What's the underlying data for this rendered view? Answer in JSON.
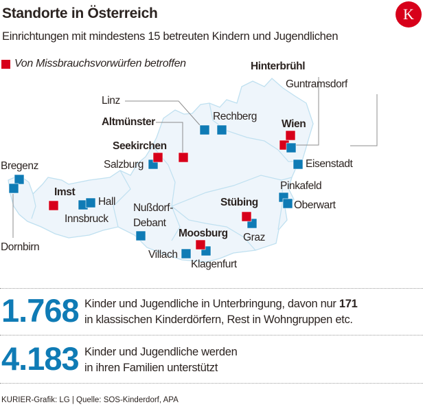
{
  "header": {
    "title": "Standorte in Österreich",
    "subtitle": "Einrichtungen mit mindestens 15 betreuten Kindern und Jugendlichen",
    "logo_letter": "K"
  },
  "legend": {
    "label": "Von Missbrauchsvorwürfen betroffen",
    "color": "#d7001a"
  },
  "colors": {
    "affected": "#d7001a",
    "standard": "#0f7bb5",
    "map_fill": "#eef5fb",
    "map_border": "#bfe0f0"
  },
  "locations": [
    {
      "name": "Bregenz",
      "affected": false,
      "bold": false
    },
    {
      "name": "Dornbirn",
      "affected": false,
      "bold": false
    },
    {
      "name": "Imst",
      "affected": true,
      "bold": true
    },
    {
      "name": "Innsbruck",
      "affected": false,
      "bold": false
    },
    {
      "name": "Hall",
      "affected": false,
      "bold": false
    },
    {
      "name": "Salzburg",
      "affected": false,
      "bold": false
    },
    {
      "name": "Seekirchen",
      "affected": true,
      "bold": true
    },
    {
      "name": "Altmünster",
      "affected": true,
      "bold": true
    },
    {
      "name": "Linz",
      "affected": false,
      "bold": false
    },
    {
      "name": "Rechberg",
      "affected": false,
      "bold": false
    },
    {
      "name": "Hinterbrühl",
      "affected": true,
      "bold": true
    },
    {
      "name": "Wien",
      "affected": true,
      "bold": true
    },
    {
      "name": "Guntramsdorf",
      "affected": false,
      "bold": false
    },
    {
      "name": "Eisenstadt",
      "affected": false,
      "bold": false
    },
    {
      "name": "Pinkafeld",
      "affected": false,
      "bold": false
    },
    {
      "name": "Oberwart",
      "affected": false,
      "bold": false
    },
    {
      "name": "Stübing",
      "affected": true,
      "bold": true
    },
    {
      "name": "Graz",
      "affected": false,
      "bold": false
    },
    {
      "name": "Nußdorf-",
      "affected": false,
      "bold": false
    },
    {
      "name": "Debant",
      "affected": false,
      "bold": false
    },
    {
      "name": "Moosburg",
      "affected": true,
      "bold": true
    },
    {
      "name": "Klagenfurt",
      "affected": false,
      "bold": false
    },
    {
      "name": "Villach",
      "affected": false,
      "bold": false
    }
  ],
  "stats": [
    {
      "value": "1.768",
      "line1_pre": "Kinder und Jugendliche in Unterbringung, davon nur ",
      "line1_bold": "171",
      "line2": "in klassischen Kinderdörfern, Rest in Wohngruppen etc."
    },
    {
      "value": "4.183",
      "line1_pre": "Kinder und Jugendliche werden",
      "line1_bold": "",
      "line2": "in ihren Familien unterstützt"
    }
  ],
  "source": "KURIER-Grafik: LG | Quelle: SOS-Kinderdorf, APA"
}
